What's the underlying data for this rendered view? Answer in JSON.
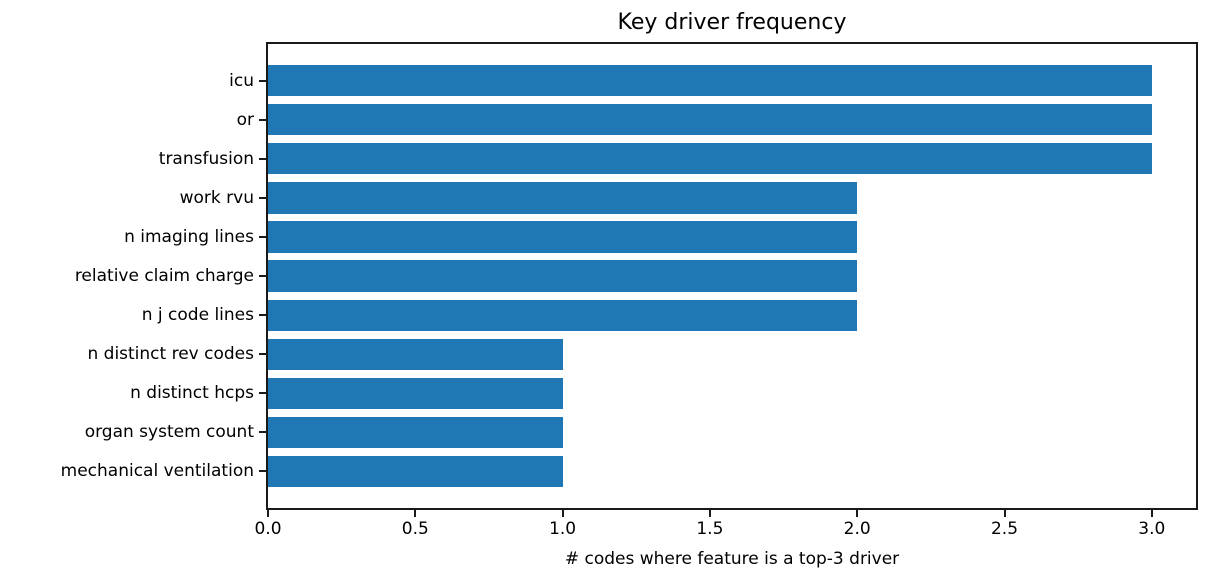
{
  "figure": {
    "background": "#ffffff"
  },
  "chart_data": {
    "type": "bar",
    "orientation": "horizontal",
    "title": "Key driver frequency",
    "xlabel": "# codes where feature is a top-3 driver",
    "ylabel": "",
    "categories": [
      "icu",
      "or",
      "transfusion",
      "work rvu",
      "n imaging lines",
      "relative claim charge",
      "n j code lines",
      "n distinct rev codes",
      "n distinct hcps",
      "organ system count",
      "mechanical ventilation"
    ],
    "values": [
      3,
      3,
      3,
      2,
      2,
      2,
      2,
      1,
      1,
      1,
      1
    ],
    "xlim": [
      0,
      3.15
    ],
    "xticks": [
      0.0,
      0.5,
      1.0,
      1.5,
      2.0,
      2.5,
      3.0
    ],
    "xtick_labels": [
      "0.0",
      "0.5",
      "1.0",
      "1.5",
      "2.0",
      "2.5",
      "3.0"
    ],
    "bar_color": "#1f77b4",
    "axis_color": "#1a1a1a",
    "grid": false,
    "legend": null
  }
}
